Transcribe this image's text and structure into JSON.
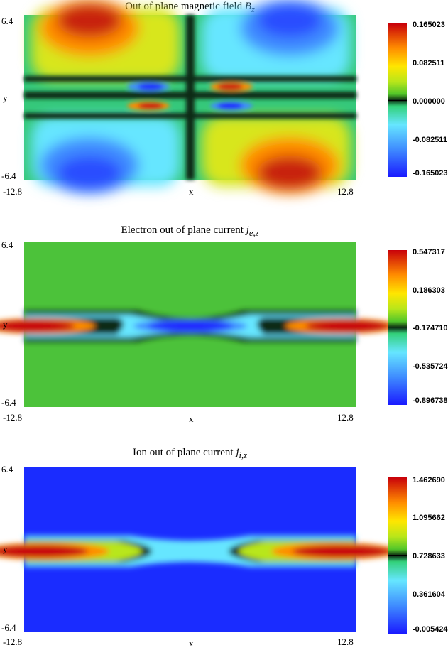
{
  "chart_data": [
    {
      "type": "heatmap",
      "title_text": "Out of plane magnetic field ",
      "title_math": "B",
      "title_sub": "z",
      "xlabel": "x",
      "ylabel": "y",
      "xlim": [
        -12.8,
        12.8
      ],
      "ylim": [
        -6.4,
        6.4
      ],
      "x_ticks": [
        "-12.8",
        "12.8"
      ],
      "y_ticks": [
        "6.4",
        "-6.4"
      ],
      "colorbar_ticks": [
        "0.165023",
        "0.082511",
        "0.000000",
        "-0.082511",
        "-0.165023"
      ],
      "colorbar_range": [
        -0.165023,
        0.165023
      ]
    },
    {
      "type": "heatmap",
      "title_text": "Electron out of plane current ",
      "title_math": "j",
      "title_sub": "e,z",
      "xlabel": "x",
      "ylabel": "y",
      "xlim": [
        -12.8,
        12.8
      ],
      "ylim": [
        -6.4,
        6.4
      ],
      "x_ticks": [
        "-12.8",
        "12.8"
      ],
      "y_ticks": [
        "6.4",
        "-6.4"
      ],
      "colorbar_ticks": [
        "0.547317",
        "0.186303",
        "-0.174710",
        "-0.535724",
        "-0.896738"
      ],
      "colorbar_range": [
        -0.896738,
        0.547317
      ]
    },
    {
      "type": "heatmap",
      "title_text": "Ion out of plane current ",
      "title_math": "j",
      "title_sub": "i,z",
      "xlabel": "x",
      "ylabel": "y",
      "xlim": [
        -12.8,
        12.8
      ],
      "ylim": [
        -6.4,
        6.4
      ],
      "x_ticks": [
        "-12.8",
        "12.8"
      ],
      "y_ticks": [
        "6.4",
        "-6.4"
      ],
      "colorbar_ticks": [
        "1.462690",
        "1.095662",
        "0.728633",
        "0.361604",
        "-0.005424"
      ],
      "colorbar_range": [
        -0.005424,
        1.46269
      ]
    }
  ],
  "colormap": [
    "#1a1aff",
    "#3f8cff",
    "#66e6ff",
    "#33d17a",
    "#0c2a12",
    "#52c62a",
    "#b8e61a",
    "#ffe600",
    "#ff8c00",
    "#c8000a"
  ]
}
